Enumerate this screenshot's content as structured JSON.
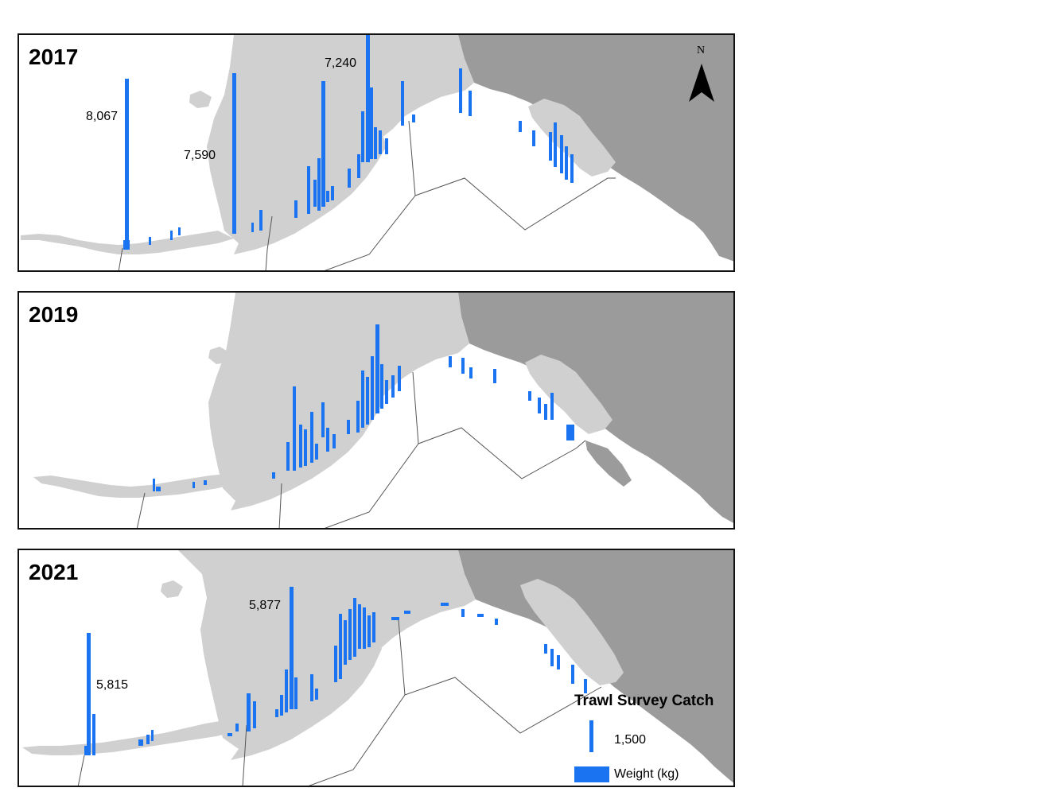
{
  "panels": [
    {
      "year": "2017",
      "labels": [
        "8,067",
        "7,590",
        "7,240"
      ]
    },
    {
      "year": "2019",
      "labels": []
    },
    {
      "year": "2021",
      "labels": [
        "5,877",
        "5,815"
      ]
    }
  ],
  "north_arrow": {
    "label": "N"
  },
  "legend": {
    "title": "Trawl Survey Catch",
    "scale_value": "1,500",
    "unit_label": "Weight (kg)"
  },
  "colors": {
    "catch_bar": "#1a73f0",
    "land_alaska": "#d0d0d0",
    "land_canada": "#9b9b9b",
    "water": "#ffffff"
  },
  "map_features": [
    "alaska-land",
    "canada-land",
    "aleutian-islands",
    "management-area-boundaries",
    "catch-bars"
  ]
}
